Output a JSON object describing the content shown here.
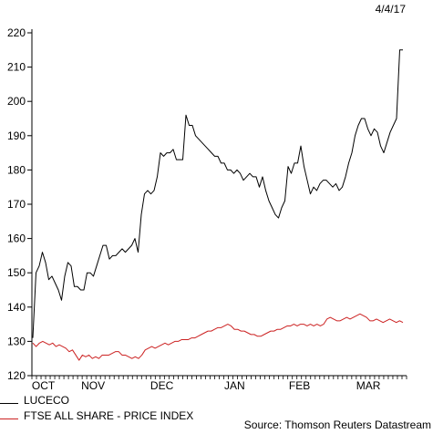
{
  "date_stamp": "4/4/17",
  "source": "Source: Thomson Reuters Datastream",
  "colors": {
    "luceco": "#000000",
    "ftse": "#cc2222",
    "axis": "#000000"
  },
  "chart_data": {
    "type": "line",
    "title": "",
    "xlabel": "",
    "ylabel": "",
    "ylim": [
      120,
      220
    ],
    "yticks": [
      120,
      130,
      140,
      150,
      160,
      170,
      180,
      190,
      200,
      210,
      220
    ],
    "x_month_labels": [
      "OCT",
      "NOV",
      "DEC",
      "JAN",
      "FEB",
      "MAR"
    ],
    "x_month_centers": [
      3,
      16,
      34,
      53,
      70,
      88
    ],
    "x_range": [
      0,
      98
    ],
    "legend_position": "bottom-left",
    "series": [
      {
        "name": "LUCECO",
        "color": "#000000",
        "values": [
          131,
          150,
          152,
          156,
          153,
          148,
          149,
          147,
          145,
          142,
          149,
          153,
          152,
          146,
          146,
          145,
          145,
          150,
          150,
          149,
          152,
          155,
          158,
          158,
          154,
          155,
          155,
          156,
          157,
          156,
          157,
          158,
          160,
          156,
          167,
          173,
          174,
          173,
          174,
          178,
          185,
          184,
          185,
          185,
          186,
          183,
          183,
          183,
          196,
          193,
          193,
          190,
          189,
          188,
          187,
          186,
          185,
          184,
          184,
          182,
          182,
          180,
          180,
          179,
          180,
          179,
          177,
          178,
          179,
          178,
          178,
          175,
          178,
          174,
          171,
          169,
          167,
          166,
          169,
          171,
          181,
          179,
          182,
          182,
          187,
          181,
          177,
          173,
          175,
          174,
          176,
          177,
          177,
          176,
          175,
          176,
          174,
          175,
          178,
          182,
          185,
          190,
          193,
          195,
          195,
          192,
          190,
          192,
          191,
          187,
          185,
          188,
          191,
          193,
          195,
          215,
          215
        ]
      },
      {
        "name": "FTSE ALL SHARE - PRICE INDEX",
        "color": "#cc2222",
        "values": [
          129.5,
          128.5,
          129.5,
          130,
          129.5,
          129,
          129.5,
          128.5,
          129,
          128.5,
          128,
          127,
          127.5,
          126,
          124.5,
          126,
          125.5,
          126,
          125,
          125.5,
          125,
          126,
          126,
          126,
          126.5,
          127,
          127,
          126,
          126,
          125.5,
          125,
          125.5,
          125,
          126,
          127.5,
          128,
          128.5,
          128,
          128.5,
          129,
          129.5,
          129,
          129.5,
          130,
          130,
          130.5,
          130.5,
          130.5,
          131,
          131,
          131.5,
          132,
          132.5,
          133,
          133,
          133.5,
          134,
          134,
          134.5,
          135,
          134.5,
          133.5,
          133.5,
          133,
          133,
          132.5,
          132,
          132,
          131.5,
          131.5,
          132,
          132.5,
          133,
          133,
          133.5,
          133.5,
          134,
          134.5,
          134.5,
          135,
          134.5,
          135,
          135,
          134.5,
          135,
          134.5,
          135,
          134.5,
          135,
          136.5,
          137,
          136.5,
          136,
          136,
          136.5,
          137,
          136.5,
          137,
          137.5,
          138,
          137.5,
          137,
          136,
          136,
          136.5,
          136,
          135.5,
          136,
          136.5,
          136,
          135.5,
          136,
          135.5
        ]
      }
    ]
  }
}
